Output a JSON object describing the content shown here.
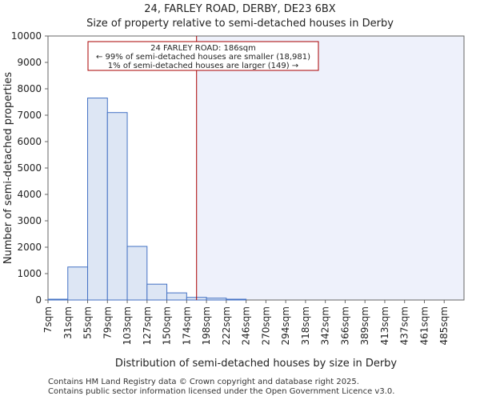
{
  "header": {
    "title": "24, FARLEY ROAD, DERBY, DE23 6BX",
    "subtitle": "Size of property relative to semi-detached houses in Derby"
  },
  "footer": {
    "line1": "Contains HM Land Registry data © Crown copyright and database right 2025.",
    "line2": "Contains public sector information licensed under the Open Government Licence v3.0."
  },
  "colors": {
    "bar_fill": "#dde6f4",
    "bar_stroke": "#4472c4",
    "highlight_region": "#eef1fb",
    "marker_line": "#aa0000",
    "annotation_border": "#aa0000"
  },
  "chart_data": {
    "type": "bar",
    "title": "24, FARLEY ROAD, DERBY, DE23 6BX",
    "xlabel": "Distribution of semi-detached houses by size in Derby",
    "ylabel": "Number of semi-detached properties",
    "ylim": [
      0,
      10000
    ],
    "yticks": [
      0,
      1000,
      2000,
      3000,
      4000,
      5000,
      6000,
      7000,
      8000,
      9000,
      10000
    ],
    "categories": [
      "7sqm",
      "31sqm",
      "55sqm",
      "79sqm",
      "103sqm",
      "127sqm",
      "150sqm",
      "174sqm",
      "198sqm",
      "222sqm",
      "246sqm",
      "270sqm",
      "294sqm",
      "318sqm",
      "342sqm",
      "366sqm",
      "389sqm",
      "413sqm",
      "437sqm",
      "461sqm",
      "485sqm"
    ],
    "values": [
      30,
      1250,
      7650,
      7100,
      2030,
      600,
      270,
      100,
      70,
      30,
      0,
      0,
      0,
      0,
      0,
      0,
      0,
      0,
      0,
      0,
      0
    ],
    "marker": {
      "value_index": 7.5,
      "label": "24 FARLEY ROAD: 186sqm",
      "line2": "← 99% of semi-detached houses are smaller (18,981)",
      "line3": "1% of semi-detached houses are larger (149) →"
    }
  }
}
